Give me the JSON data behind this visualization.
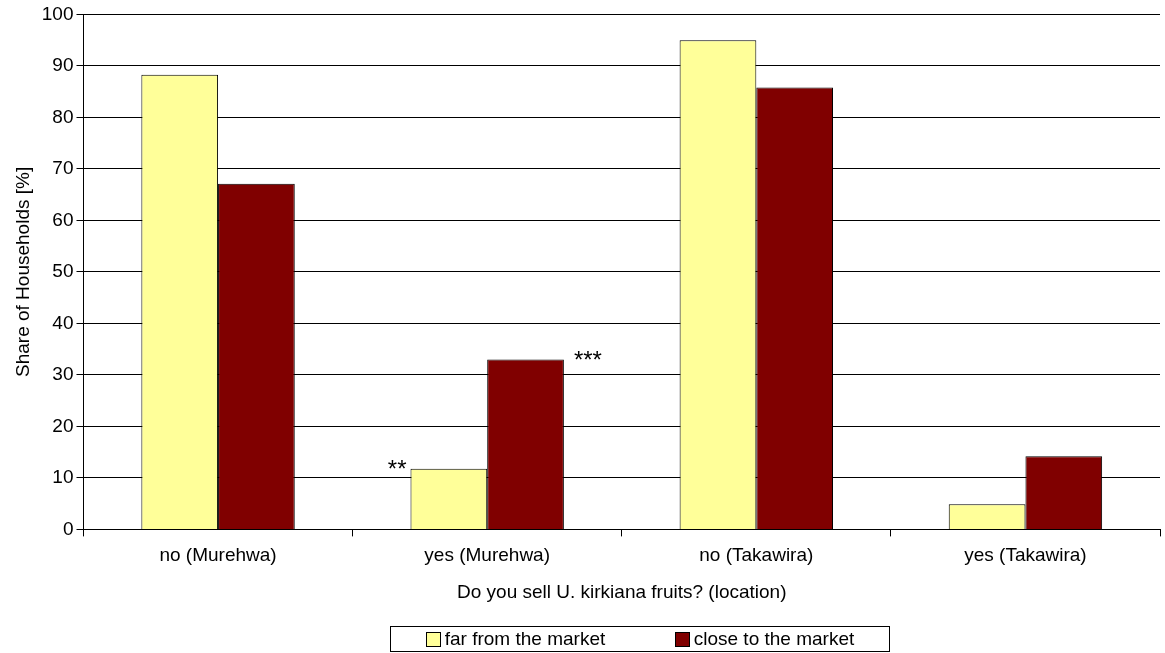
{
  "chart_data": {
    "type": "bar",
    "xlabel": "Do you sell U. kirkiana fruits? (location)",
    "ylabel": "Share of Households [%]",
    "categories": [
      "no (Murehwa)",
      "yes (Murehwa)",
      "no (Takawira)",
      "yes (Takawira)"
    ],
    "series": [
      {
        "name": "far from the market",
        "color": "#ffff99",
        "values": [
          88.3,
          11.8,
          95.0,
          4.9
        ]
      },
      {
        "name": "close to the market",
        "color": "#800000",
        "values": [
          67.1,
          33.0,
          85.8,
          14.2
        ]
      }
    ],
    "ylim": [
      0,
      100
    ],
    "yticks": [
      0,
      10,
      20,
      30,
      40,
      50,
      60,
      70,
      80,
      90,
      100
    ],
    "grid": "y",
    "legend": "bottom",
    "annotations": [
      "**",
      "***"
    ]
  }
}
